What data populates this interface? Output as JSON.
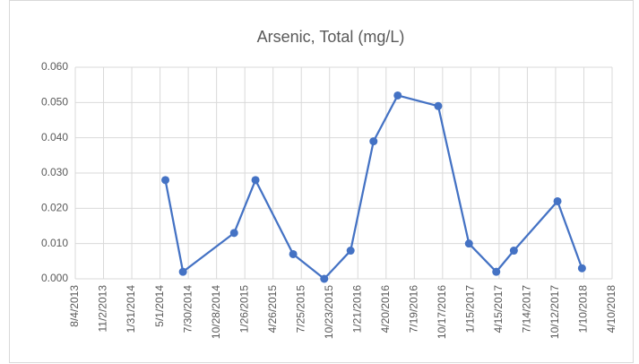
{
  "chart_data": {
    "type": "line",
    "title": "Arsenic, Total (mg/L)",
    "x": [
      "5/18/2014",
      "7/13/2014",
      "12/23/2014",
      "3/1/2015",
      "6/29/2015",
      "10/6/2015",
      "12/29/2015",
      "3/11/2016",
      "5/27/2016",
      "10/3/2016",
      "1/9/2017",
      "4/6/2017",
      "6/1/2017",
      "10/18/2017",
      "1/4/2018"
    ],
    "series": [
      {
        "name": "Arsenic, Total",
        "color": "#4472c4",
        "values": [
          0.028,
          0.002,
          0.013,
          0.028,
          0.007,
          0.0,
          0.008,
          0.039,
          0.052,
          0.049,
          0.01,
          0.002,
          0.008,
          0.022,
          0.003
        ]
      }
    ],
    "xlim": [
      "8/4/2013",
      "4/10/2018"
    ],
    "xticks": [
      "8/4/2013",
      "11/2/2013",
      "1/31/2014",
      "5/1/2014",
      "7/30/2014",
      "10/28/2014",
      "1/26/2015",
      "4/26/2015",
      "7/25/2015",
      "10/23/2015",
      "1/21/2016",
      "4/20/2016",
      "7/19/2016",
      "10/17/2016",
      "1/15/2017",
      "4/15/2017",
      "7/14/2017",
      "10/12/2017",
      "1/10/2018",
      "4/10/2018"
    ],
    "ylim": [
      0,
      0.06
    ],
    "yticks": [
      {
        "value": 0,
        "label": "0.000"
      },
      {
        "value": 0.01,
        "label": "0.010"
      },
      {
        "value": 0.02,
        "label": "0.020"
      },
      {
        "value": 0.03,
        "label": "0.030"
      },
      {
        "value": 0.04,
        "label": "0.040"
      },
      {
        "value": 0.05,
        "label": "0.050"
      },
      {
        "value": 0.06,
        "label": "0.060"
      }
    ],
    "grid": true
  }
}
